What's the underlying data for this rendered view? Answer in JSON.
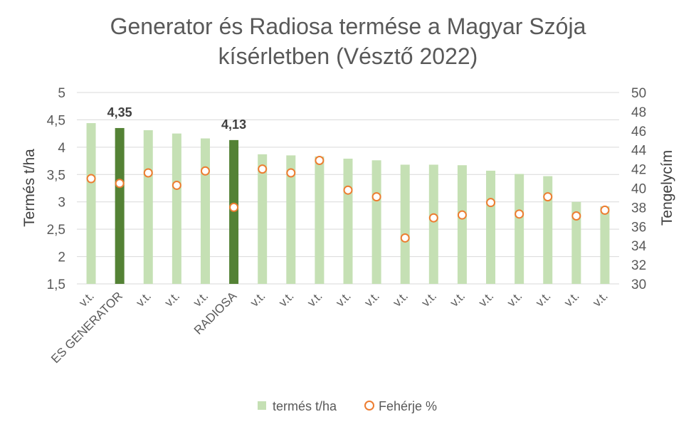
{
  "chart_data": {
    "type": "bar",
    "title": [
      "Generator és Radiosa termése a Magyar Szója",
      "kísérletben (Vésztő 2022)"
    ],
    "ylabel_left": "Termés t/ha",
    "ylabel_right": "Tengelycím",
    "ylim_left": [
      1.5,
      5
    ],
    "yticks_left": [
      "1,5",
      "2",
      "2,5",
      "3",
      "3,5",
      "4",
      "4,5",
      "5"
    ],
    "ylim_right": [
      30,
      50
    ],
    "yticks_right": [
      "30",
      "32",
      "34",
      "36",
      "38",
      "40",
      "42",
      "44",
      "46",
      "48",
      "50"
    ],
    "grid": true,
    "legend_position": "bottom",
    "categories": [
      "v.t.",
      "ES GENERATOR",
      "v.t.",
      "v.t.",
      "v.t.",
      "RADIOSA",
      "v.t.",
      "v.t.",
      "v.t.",
      "v.t.",
      "v.t.",
      "v.t.",
      "v.t.",
      "v.t.",
      "v.t.",
      "v.t.",
      "v.t.",
      "v.t.",
      "v.t."
    ],
    "series": [
      {
        "name": "termés t/ha",
        "kind": "bar",
        "axis": "left",
        "color": "#c5e0b4",
        "highlight_color": "#548235",
        "highlight_indices": [
          1,
          5
        ],
        "values": [
          4.44,
          4.35,
          4.31,
          4.25,
          4.16,
          4.13,
          3.87,
          3.85,
          3.83,
          3.79,
          3.76,
          3.68,
          3.68,
          3.67,
          3.57,
          3.51,
          3.47,
          3.0,
          2.92
        ]
      },
      {
        "name": "Fehérje %",
        "kind": "marker",
        "axis": "right",
        "color": "#ed7d31",
        "values": [
          41.0,
          40.5,
          41.6,
          40.3,
          41.8,
          38.0,
          42.0,
          41.6,
          42.9,
          39.8,
          39.1,
          34.8,
          36.9,
          37.2,
          38.5,
          37.3,
          39.1,
          37.1,
          37.7
        ]
      }
    ],
    "data_labels": [
      {
        "index": 1,
        "text": "4,35"
      },
      {
        "index": 5,
        "text": "4,13"
      }
    ]
  }
}
